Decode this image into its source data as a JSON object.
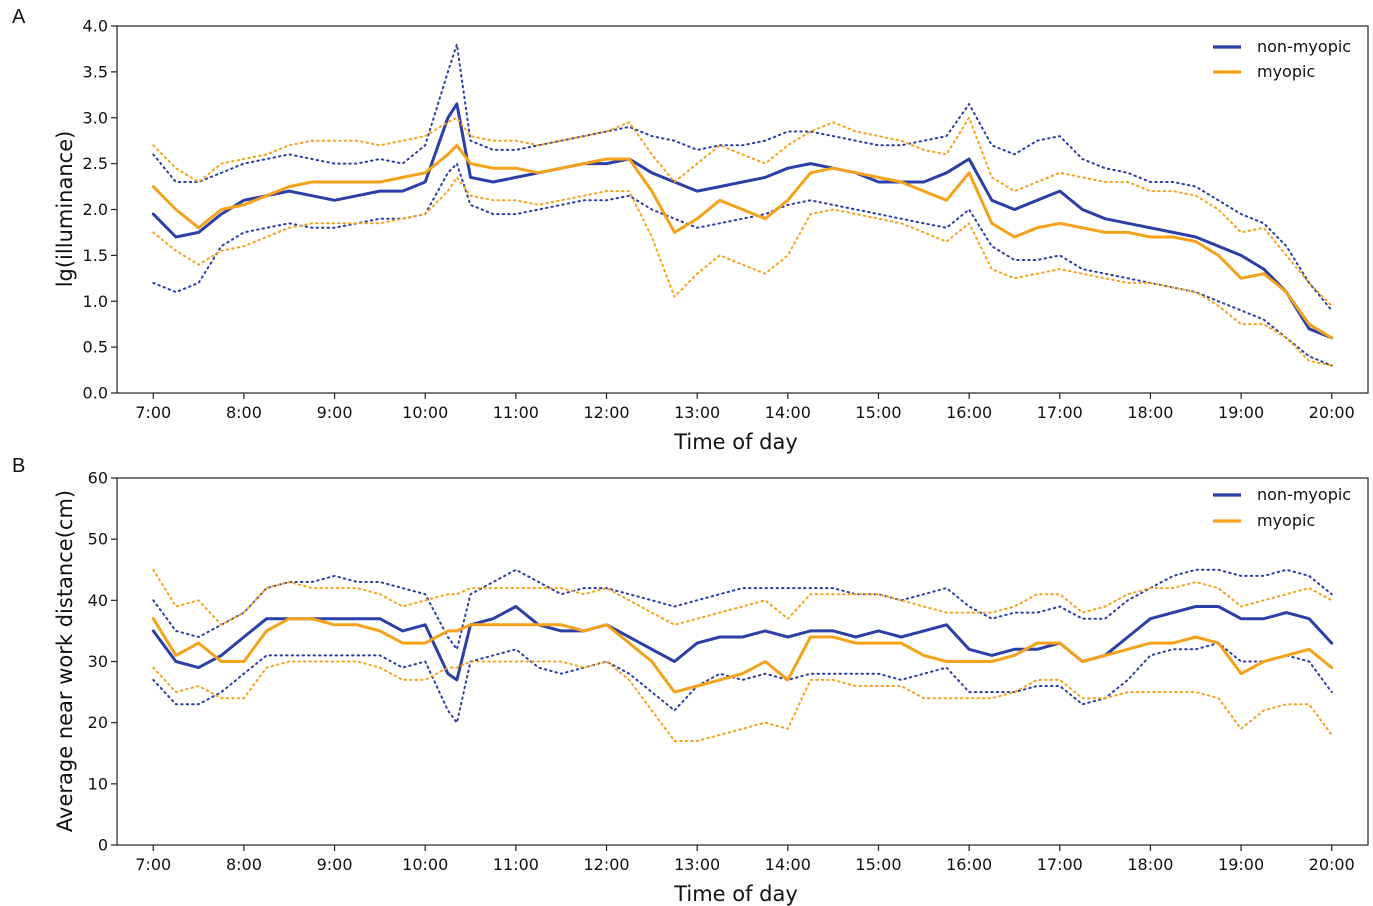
{
  "colors": {
    "non_myopic": "#2b3fa6",
    "myopic": "#f5a21b"
  },
  "chart_data": [
    {
      "type": "line",
      "panel_label": "A",
      "xlabel": "Time of day",
      "ylabel": "lg(illuminance)",
      "xlim": [
        6.6,
        20.4
      ],
      "ylim": [
        0.0,
        4.0
      ],
      "x_ticks": [
        7,
        8,
        9,
        10,
        11,
        12,
        13,
        14,
        15,
        16,
        17,
        18,
        19,
        20
      ],
      "x_tick_labels": [
        "7:00",
        "8:00",
        "9:00",
        "10:00",
        "11:00",
        "12:00",
        "13:00",
        "14:00",
        "15:00",
        "16:00",
        "17:00",
        "18:00",
        "19:00",
        "20:00"
      ],
      "y_ticks": [
        0.0,
        0.5,
        1.0,
        1.5,
        2.0,
        2.5,
        3.0,
        3.5,
        4.0
      ],
      "y_tick_labels": [
        "0.0",
        "0.5",
        "1.0",
        "1.5",
        "2.0",
        "2.5",
        "3.0",
        "3.5",
        "4.0"
      ],
      "legend_position": "top-right",
      "legend": [
        "non-myopic",
        "myopic"
      ],
      "x": [
        7.0,
        7.25,
        7.5,
        7.75,
        8.0,
        8.25,
        8.5,
        8.75,
        9.0,
        9.25,
        9.5,
        9.75,
        10.0,
        10.25,
        10.35,
        10.5,
        10.75,
        11.0,
        11.25,
        11.5,
        11.75,
        12.0,
        12.25,
        12.5,
        12.75,
        13.0,
        13.25,
        13.5,
        13.75,
        14.0,
        14.25,
        14.5,
        14.75,
        15.0,
        15.25,
        15.5,
        15.75,
        16.0,
        16.25,
        16.5,
        16.75,
        17.0,
        17.25,
        17.5,
        17.75,
        18.0,
        18.25,
        18.5,
        18.75,
        19.0,
        19.25,
        19.5,
        19.75,
        20.0
      ],
      "series": [
        {
          "name": "non-myopic",
          "style": "solid",
          "color_key": "non_myopic",
          "values": [
            1.95,
            1.7,
            1.75,
            1.95,
            2.1,
            2.15,
            2.2,
            2.15,
            2.1,
            2.15,
            2.2,
            2.2,
            2.3,
            3.0,
            3.15,
            2.35,
            2.3,
            2.35,
            2.4,
            2.45,
            2.5,
            2.5,
            2.55,
            2.4,
            2.3,
            2.2,
            2.25,
            2.3,
            2.35,
            2.45,
            2.5,
            2.45,
            2.4,
            2.3,
            2.3,
            2.3,
            2.4,
            2.55,
            2.1,
            2.0,
            2.1,
            2.2,
            2.0,
            1.9,
            1.85,
            1.8,
            1.75,
            1.7,
            1.6,
            1.5,
            1.35,
            1.1,
            0.7,
            0.6
          ]
        },
        {
          "name": "",
          "style": "dotted",
          "color_key": "non_myopic",
          "values": [
            2.6,
            2.3,
            2.3,
            2.4,
            2.5,
            2.55,
            2.6,
            2.55,
            2.5,
            2.5,
            2.55,
            2.5,
            2.7,
            3.5,
            3.8,
            2.75,
            2.65,
            2.65,
            2.7,
            2.75,
            2.8,
            2.85,
            2.9,
            2.8,
            2.75,
            2.65,
            2.7,
            2.7,
            2.75,
            2.85,
            2.85,
            2.8,
            2.75,
            2.7,
            2.7,
            2.75,
            2.8,
            3.15,
            2.7,
            2.6,
            2.75,
            2.8,
            2.55,
            2.45,
            2.4,
            2.3,
            2.3,
            2.25,
            2.1,
            1.95,
            1.85,
            1.6,
            1.2,
            0.9
          ]
        },
        {
          "name": "",
          "style": "dotted",
          "color_key": "non_myopic",
          "values": [
            1.2,
            1.1,
            1.2,
            1.6,
            1.75,
            1.8,
            1.85,
            1.8,
            1.8,
            1.85,
            1.9,
            1.9,
            1.95,
            2.4,
            2.5,
            2.05,
            1.95,
            1.95,
            2.0,
            2.05,
            2.1,
            2.1,
            2.15,
            2.0,
            1.9,
            1.8,
            1.85,
            1.9,
            1.95,
            2.05,
            2.1,
            2.05,
            2.0,
            1.95,
            1.9,
            1.85,
            1.8,
            2.0,
            1.6,
            1.45,
            1.45,
            1.5,
            1.35,
            1.3,
            1.25,
            1.2,
            1.15,
            1.1,
            1.0,
            0.9,
            0.8,
            0.6,
            0.4,
            0.3
          ]
        },
        {
          "name": "myopic",
          "style": "solid",
          "color_key": "myopic",
          "values": [
            2.25,
            2.0,
            1.8,
            2.0,
            2.05,
            2.15,
            2.25,
            2.3,
            2.3,
            2.3,
            2.3,
            2.35,
            2.4,
            2.6,
            2.7,
            2.5,
            2.45,
            2.45,
            2.4,
            2.45,
            2.5,
            2.55,
            2.55,
            2.2,
            1.75,
            1.9,
            2.1,
            2.0,
            1.9,
            2.1,
            2.4,
            2.45,
            2.4,
            2.35,
            2.3,
            2.2,
            2.1,
            2.4,
            1.85,
            1.7,
            1.8,
            1.85,
            1.8,
            1.75,
            1.75,
            1.7,
            1.7,
            1.65,
            1.5,
            1.25,
            1.3,
            1.1,
            0.75,
            0.6
          ]
        },
        {
          "name": "",
          "style": "dotted",
          "color_key": "myopic",
          "values": [
            2.7,
            2.45,
            2.3,
            2.5,
            2.55,
            2.6,
            2.7,
            2.75,
            2.75,
            2.75,
            2.7,
            2.75,
            2.8,
            2.95,
            3.0,
            2.8,
            2.75,
            2.75,
            2.7,
            2.75,
            2.8,
            2.85,
            2.95,
            2.6,
            2.3,
            2.5,
            2.7,
            2.6,
            2.5,
            2.7,
            2.85,
            2.95,
            2.85,
            2.8,
            2.75,
            2.65,
            2.6,
            3.0,
            2.35,
            2.2,
            2.3,
            2.4,
            2.35,
            2.3,
            2.3,
            2.2,
            2.2,
            2.15,
            2.0,
            1.75,
            1.8,
            1.5,
            1.2,
            0.95
          ]
        },
        {
          "name": "",
          "style": "dotted",
          "color_key": "myopic",
          "values": [
            1.75,
            1.55,
            1.4,
            1.55,
            1.6,
            1.7,
            1.8,
            1.85,
            1.85,
            1.85,
            1.85,
            1.9,
            1.95,
            2.2,
            2.35,
            2.15,
            2.1,
            2.1,
            2.05,
            2.1,
            2.15,
            2.2,
            2.2,
            1.7,
            1.05,
            1.3,
            1.5,
            1.4,
            1.3,
            1.5,
            1.95,
            2.0,
            1.95,
            1.9,
            1.85,
            1.75,
            1.65,
            1.85,
            1.35,
            1.25,
            1.3,
            1.35,
            1.3,
            1.25,
            1.2,
            1.2,
            1.15,
            1.1,
            0.95,
            0.75,
            0.75,
            0.6,
            0.35,
            0.3
          ]
        }
      ]
    },
    {
      "type": "line",
      "panel_label": "B",
      "xlabel": "Time of day",
      "ylabel": "Average near work distance(cm)",
      "xlim": [
        6.6,
        20.4
      ],
      "ylim": [
        0,
        60
      ],
      "x_ticks": [
        7,
        8,
        9,
        10,
        11,
        12,
        13,
        14,
        15,
        16,
        17,
        18,
        19,
        20
      ],
      "x_tick_labels": [
        "7:00",
        "8:00",
        "9:00",
        "10:00",
        "11:00",
        "12:00",
        "13:00",
        "14:00",
        "15:00",
        "16:00",
        "17:00",
        "18:00",
        "19:00",
        "20:00"
      ],
      "y_ticks": [
        0,
        10,
        20,
        30,
        40,
        50,
        60
      ],
      "y_tick_labels": [
        "0",
        "10",
        "20",
        "30",
        "40",
        "50",
        "60"
      ],
      "legend_position": "top-right",
      "legend": [
        "non-myopic",
        "myopic"
      ],
      "x": [
        7.0,
        7.25,
        7.5,
        7.75,
        8.0,
        8.25,
        8.5,
        8.75,
        9.0,
        9.25,
        9.5,
        9.75,
        10.0,
        10.25,
        10.35,
        10.5,
        10.75,
        11.0,
        11.25,
        11.5,
        11.75,
        12.0,
        12.25,
        12.5,
        12.75,
        13.0,
        13.25,
        13.5,
        13.75,
        14.0,
        14.25,
        14.5,
        14.75,
        15.0,
        15.25,
        15.5,
        15.75,
        16.0,
        16.25,
        16.5,
        16.75,
        17.0,
        17.25,
        17.5,
        17.75,
        18.0,
        18.25,
        18.5,
        18.75,
        19.0,
        19.25,
        19.5,
        19.75,
        20.0
      ],
      "series": [
        {
          "name": "non-myopic",
          "style": "solid",
          "color_key": "non_myopic",
          "values": [
            35,
            30,
            29,
            31,
            34,
            37,
            37,
            37,
            37,
            37,
            37,
            35,
            36,
            28,
            27,
            36,
            37,
            39,
            36,
            35,
            35,
            36,
            34,
            32,
            30,
            33,
            34,
            34,
            35,
            34,
            35,
            35,
            34,
            35,
            34,
            35,
            36,
            32,
            31,
            32,
            32,
            33,
            30,
            31,
            34,
            37,
            38,
            39,
            39,
            37,
            37,
            38,
            37,
            33
          ]
        },
        {
          "name": "",
          "style": "dotted",
          "color_key": "non_myopic",
          "values": [
            40,
            35,
            34,
            36,
            38,
            42,
            43,
            43,
            44,
            43,
            43,
            42,
            41,
            34,
            32,
            41,
            43,
            45,
            43,
            41,
            42,
            42,
            41,
            40,
            39,
            40,
            41,
            42,
            42,
            42,
            42,
            42,
            41,
            41,
            40,
            41,
            42,
            39,
            37,
            38,
            38,
            39,
            37,
            37,
            40,
            42,
            44,
            45,
            45,
            44,
            44,
            45,
            44,
            41
          ]
        },
        {
          "name": "",
          "style": "dotted",
          "color_key": "non_myopic",
          "values": [
            27,
            23,
            23,
            25,
            28,
            31,
            31,
            31,
            31,
            31,
            31,
            29,
            30,
            22,
            20,
            30,
            31,
            32,
            29,
            28,
            29,
            30,
            28,
            25,
            22,
            26,
            28,
            27,
            28,
            27,
            28,
            28,
            28,
            28,
            27,
            28,
            29,
            25,
            25,
            25,
            26,
            26,
            23,
            24,
            27,
            31,
            32,
            32,
            33,
            30,
            30,
            31,
            30,
            25
          ]
        },
        {
          "name": "myopic",
          "style": "solid",
          "color_key": "myopic",
          "values": [
            37,
            31,
            33,
            30,
            30,
            35,
            37,
            37,
            36,
            36,
            35,
            33,
            33,
            35,
            35,
            36,
            36,
            36,
            36,
            36,
            35,
            36,
            33,
            30,
            25,
            26,
            27,
            28,
            30,
            27,
            34,
            34,
            33,
            33,
            33,
            31,
            30,
            30,
            30,
            31,
            33,
            33,
            30,
            31,
            32,
            33,
            33,
            34,
            33,
            28,
            30,
            31,
            32,
            29
          ]
        },
        {
          "name": "",
          "style": "dotted",
          "color_key": "myopic",
          "values": [
            45,
            39,
            40,
            36,
            38,
            42,
            43,
            42,
            42,
            42,
            41,
            39,
            40,
            41,
            41,
            42,
            42,
            42,
            42,
            42,
            41,
            42,
            40,
            38,
            36,
            37,
            38,
            39,
            40,
            37,
            41,
            41,
            41,
            41,
            40,
            39,
            38,
            38,
            38,
            39,
            41,
            41,
            38,
            39,
            41,
            42,
            42,
            43,
            42,
            39,
            40,
            41,
            42,
            40
          ]
        },
        {
          "name": "",
          "style": "dotted",
          "color_key": "myopic",
          "values": [
            29,
            25,
            26,
            24,
            24,
            29,
            30,
            30,
            30,
            30,
            29,
            27,
            27,
            29,
            29,
            30,
            30,
            30,
            30,
            30,
            29,
            30,
            27,
            22,
            17,
            17,
            18,
            19,
            20,
            19,
            27,
            27,
            26,
            26,
            26,
            24,
            24,
            24,
            24,
            25,
            27,
            27,
            24,
            24,
            25,
            25,
            25,
            25,
            24,
            19,
            22,
            23,
            23,
            18
          ]
        }
      ]
    }
  ]
}
